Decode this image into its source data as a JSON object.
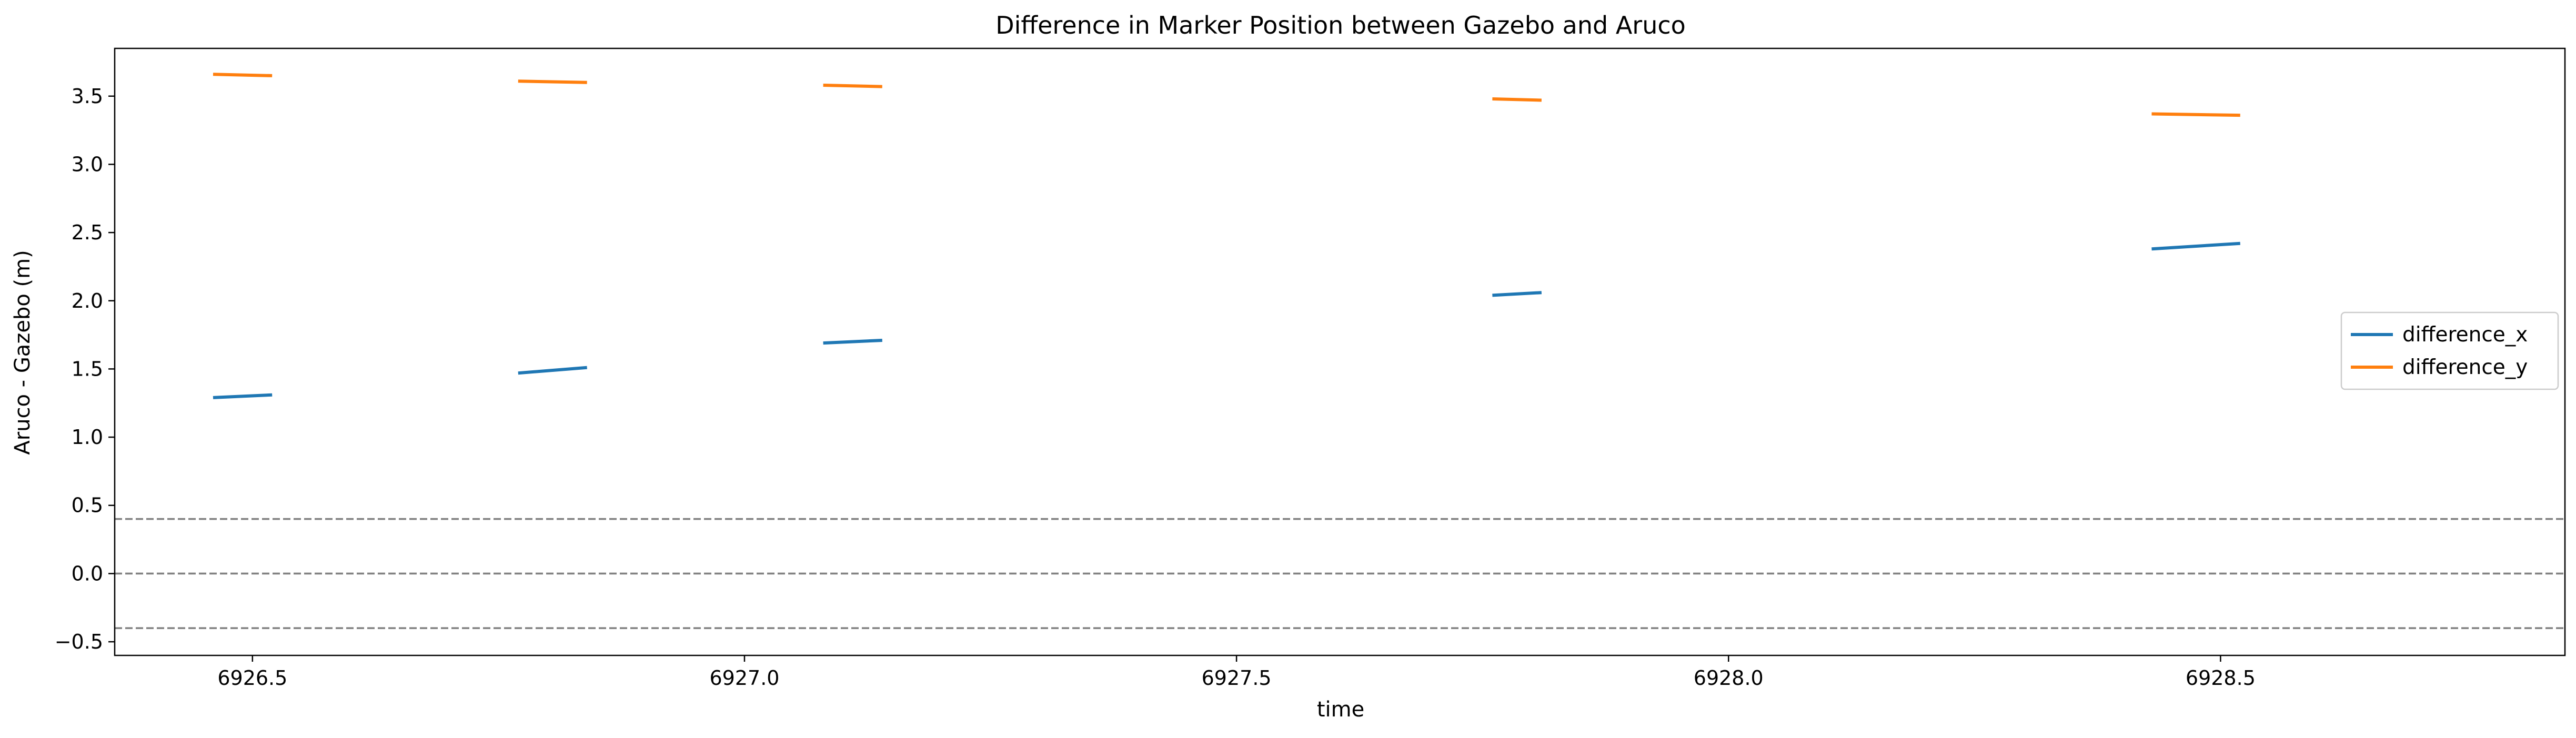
{
  "chart_data": {
    "type": "line",
    "title": "Difference in Marker Position between Gazebo and Aruco",
    "xlabel": "time",
    "ylabel": "Aruco - Gazebo (m)",
    "xlim": [
      6926.36,
      6928.85
    ],
    "ylim": [
      -0.6,
      3.85
    ],
    "xticks": [
      6926.5,
      6927.0,
      6927.5,
      6928.0,
      6928.5
    ],
    "xtick_labels": [
      "6926.5",
      "6927.0",
      "6927.5",
      "6928.0",
      "6928.5"
    ],
    "yticks": [
      -0.5,
      0.0,
      0.5,
      1.0,
      1.5,
      2.0,
      2.5,
      3.0,
      3.5
    ],
    "ytick_labels": [
      "−0.5",
      "0.0",
      "0.5",
      "1.0",
      "1.5",
      "2.0",
      "2.5",
      "3.0",
      "3.5"
    ],
    "grid": false,
    "legend_position": "right",
    "reference_lines": [
      0.4,
      0.0,
      -0.4
    ],
    "reference_line_color": "#808080",
    "series": [
      {
        "name": "difference_x",
        "color": "#1f77b4",
        "segments": [
          [
            [
              6926.46,
              1.29
            ],
            [
              6926.52,
              1.31
            ]
          ],
          [
            [
              6926.77,
              1.47
            ],
            [
              6926.84,
              1.51
            ]
          ],
          [
            [
              6927.08,
              1.69
            ],
            [
              6927.14,
              1.71
            ]
          ],
          [
            [
              6927.76,
              2.04
            ],
            [
              6927.81,
              2.06
            ]
          ],
          [
            [
              6928.43,
              2.38
            ],
            [
              6928.52,
              2.42
            ]
          ]
        ]
      },
      {
        "name": "difference_y",
        "color": "#ff7f0e",
        "segments": [
          [
            [
              6926.46,
              3.66
            ],
            [
              6926.52,
              3.65
            ]
          ],
          [
            [
              6926.77,
              3.61
            ],
            [
              6926.84,
              3.6
            ]
          ],
          [
            [
              6927.08,
              3.58
            ],
            [
              6927.14,
              3.57
            ]
          ],
          [
            [
              6927.76,
              3.48
            ],
            [
              6927.81,
              3.47
            ]
          ],
          [
            [
              6928.43,
              3.37
            ],
            [
              6928.52,
              3.36
            ]
          ]
        ]
      }
    ]
  }
}
